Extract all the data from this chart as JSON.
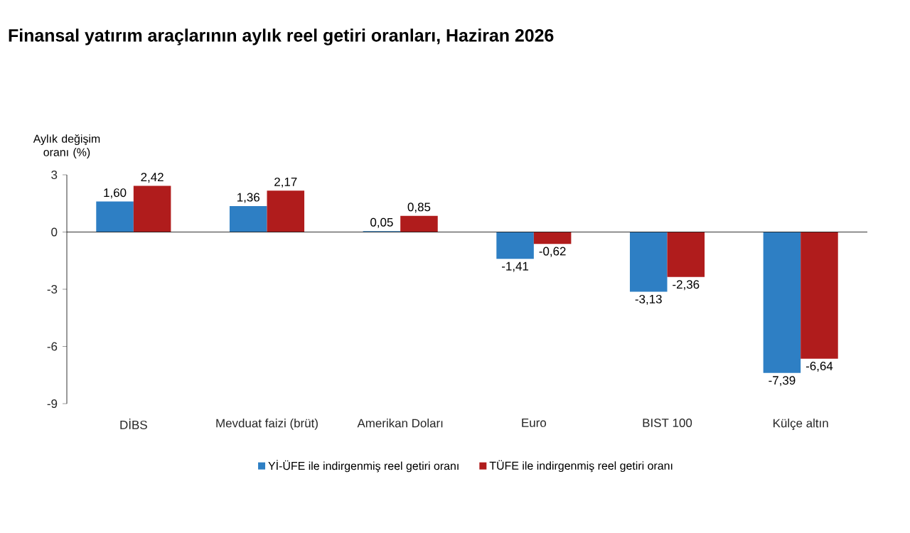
{
  "chart_data": {
    "type": "bar",
    "title": "Finansal yatırım araçlarının aylık reel getiri oranları, Haziran 2026",
    "ylabel": "Aylık değişim oranı (%)",
    "categories": [
      "DİBS",
      "Mevduat faizi (brüt)",
      "Amerikan Doları",
      "Euro",
      "BIST 100",
      "Külçe altın"
    ],
    "series": [
      {
        "name": "Yİ-ÜFE ile indirgenmiş reel getiri oranı",
        "color": "#2e7fc4",
        "values": [
          1.6,
          1.36,
          0.05,
          -1.41,
          -3.13,
          -7.39
        ],
        "value_labels": [
          "1,60",
          "1,36",
          "0,05",
          "-1,41",
          "-3,13",
          "-7,39"
        ]
      },
      {
        "name": "TÜFE ile indirgenmiş reel getiri oranı",
        "color": "#b01c1c",
        "values": [
          2.42,
          2.17,
          0.85,
          -0.62,
          -2.36,
          -6.64
        ],
        "value_labels": [
          "2,42",
          "2,17",
          "0,85",
          "-0,62",
          "-2,36",
          "-6,64"
        ]
      }
    ],
    "ylim": [
      -9,
      3
    ],
    "yticks": [
      3,
      0,
      -3,
      -6,
      -9
    ],
    "legend": "bottom"
  }
}
